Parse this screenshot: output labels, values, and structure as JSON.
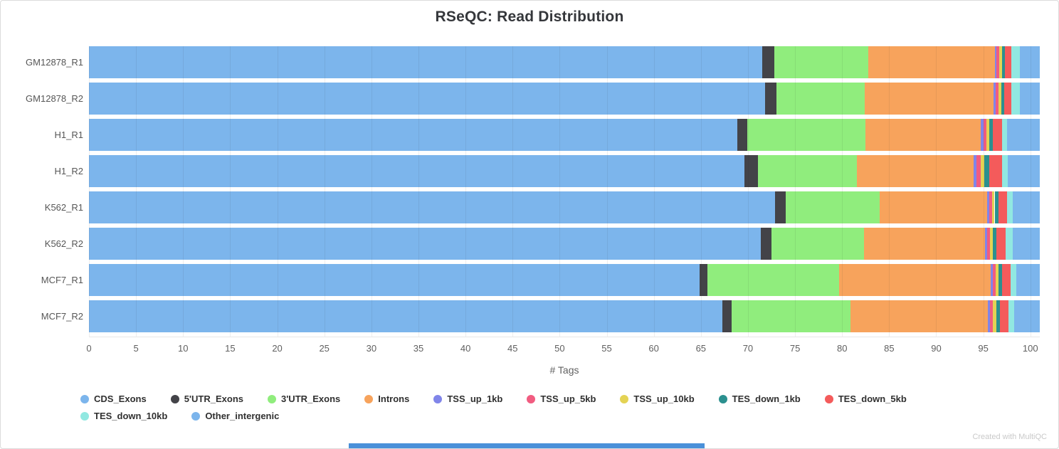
{
  "chart_data": {
    "type": "bar",
    "stacked": true,
    "orientation": "horizontal",
    "title": "RSeQC: Read Distribution",
    "xlabel": "# Tags",
    "ylabel": "",
    "xlim": [
      0,
      101
    ],
    "grid": true,
    "legend_position": "bottom",
    "legend_rows": [
      9,
      2
    ],
    "xticks": [
      0,
      5,
      10,
      15,
      20,
      25,
      30,
      35,
      40,
      45,
      50,
      55,
      60,
      65,
      70,
      75,
      80,
      85,
      90,
      95,
      100
    ],
    "categories": [
      "GM12878_R1",
      "GM12878_R2",
      "H1_R1",
      "H1_R2",
      "K562_R1",
      "K562_R2",
      "MCF7_R1",
      "MCF7_R2"
    ],
    "series": [
      {
        "name": "CDS_Exons",
        "color": "#7cb5ec",
        "values": [
          71.5,
          71.8,
          68.9,
          69.6,
          72.9,
          71.4,
          64.9,
          67.3
        ]
      },
      {
        "name": "5'UTR_Exons",
        "color": "#434348",
        "values": [
          1.3,
          1.2,
          1.0,
          1.5,
          1.1,
          1.1,
          0.8,
          1.0
        ]
      },
      {
        "name": "3'UTR_Exons",
        "color": "#90ed7d",
        "values": [
          10.0,
          9.4,
          12.6,
          10.5,
          10.0,
          9.8,
          14.0,
          12.6
        ]
      },
      {
        "name": "Introns",
        "color": "#f7a35c",
        "values": [
          13.4,
          13.7,
          12.2,
          12.4,
          11.4,
          12.9,
          16.1,
          14.6
        ]
      },
      {
        "name": "TSS_up_1kb",
        "color": "#8085e9",
        "values": [
          0.2,
          0.2,
          0.3,
          0.3,
          0.2,
          0.2,
          0.2,
          0.2
        ]
      },
      {
        "name": "TSS_up_5kb",
        "color": "#f15c80",
        "values": [
          0.3,
          0.3,
          0.3,
          0.4,
          0.3,
          0.3,
          0.3,
          0.3
        ]
      },
      {
        "name": "TSS_up_10kb",
        "color": "#e4d354",
        "values": [
          0.3,
          0.3,
          0.3,
          0.4,
          0.3,
          0.3,
          0.3,
          0.4
        ]
      },
      {
        "name": "TES_down_1kb",
        "color": "#2b908f",
        "values": [
          0.3,
          0.3,
          0.4,
          0.5,
          0.4,
          0.4,
          0.4,
          0.4
        ]
      },
      {
        "name": "TES_down_5kb",
        "color": "#f45b5b",
        "values": [
          0.7,
          0.8,
          1.0,
          1.4,
          0.9,
          1.0,
          0.9,
          0.9
        ]
      },
      {
        "name": "TES_down_10kb",
        "color": "#91e8e1",
        "values": [
          0.9,
          0.9,
          0.5,
          0.6,
          0.6,
          0.7,
          0.6,
          0.6
        ]
      },
      {
        "name": "Other_intergenic",
        "color": "#7cb5ec",
        "values": [
          2.1,
          2.1,
          3.5,
          3.4,
          2.9,
          2.9,
          2.5,
          2.7
        ]
      }
    ]
  },
  "footer": {
    "credit": "Created with MultiQC"
  }
}
